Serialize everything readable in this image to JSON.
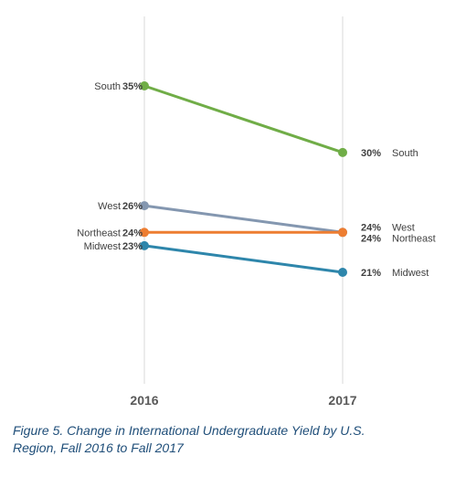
{
  "chart_data": {
    "type": "line",
    "x": [
      "2016",
      "2017"
    ],
    "ylim": [
      10,
      38
    ],
    "grid": "vertical lines at each year",
    "series": [
      {
        "name": "South",
        "values": [
          35,
          30
        ],
        "labels": [
          "35%",
          "30%"
        ],
        "color": "#70ad47"
      },
      {
        "name": "West",
        "values": [
          26,
          24
        ],
        "labels": [
          "26%",
          "24%"
        ],
        "color": "#8497b0"
      },
      {
        "name": "Northeast",
        "values": [
          24,
          24
        ],
        "labels": [
          "24%",
          "24%"
        ],
        "color": "#ed7d31"
      },
      {
        "name": "Midwest",
        "values": [
          23,
          21
        ],
        "labels": [
          "23%",
          "21%"
        ],
        "color": "#2e86ab"
      }
    ]
  },
  "caption": {
    "line1": "Figure 5. Change in International Undergraduate Yield by U.S.",
    "line2": "Region, Fall 2016 to Fall 2017"
  }
}
